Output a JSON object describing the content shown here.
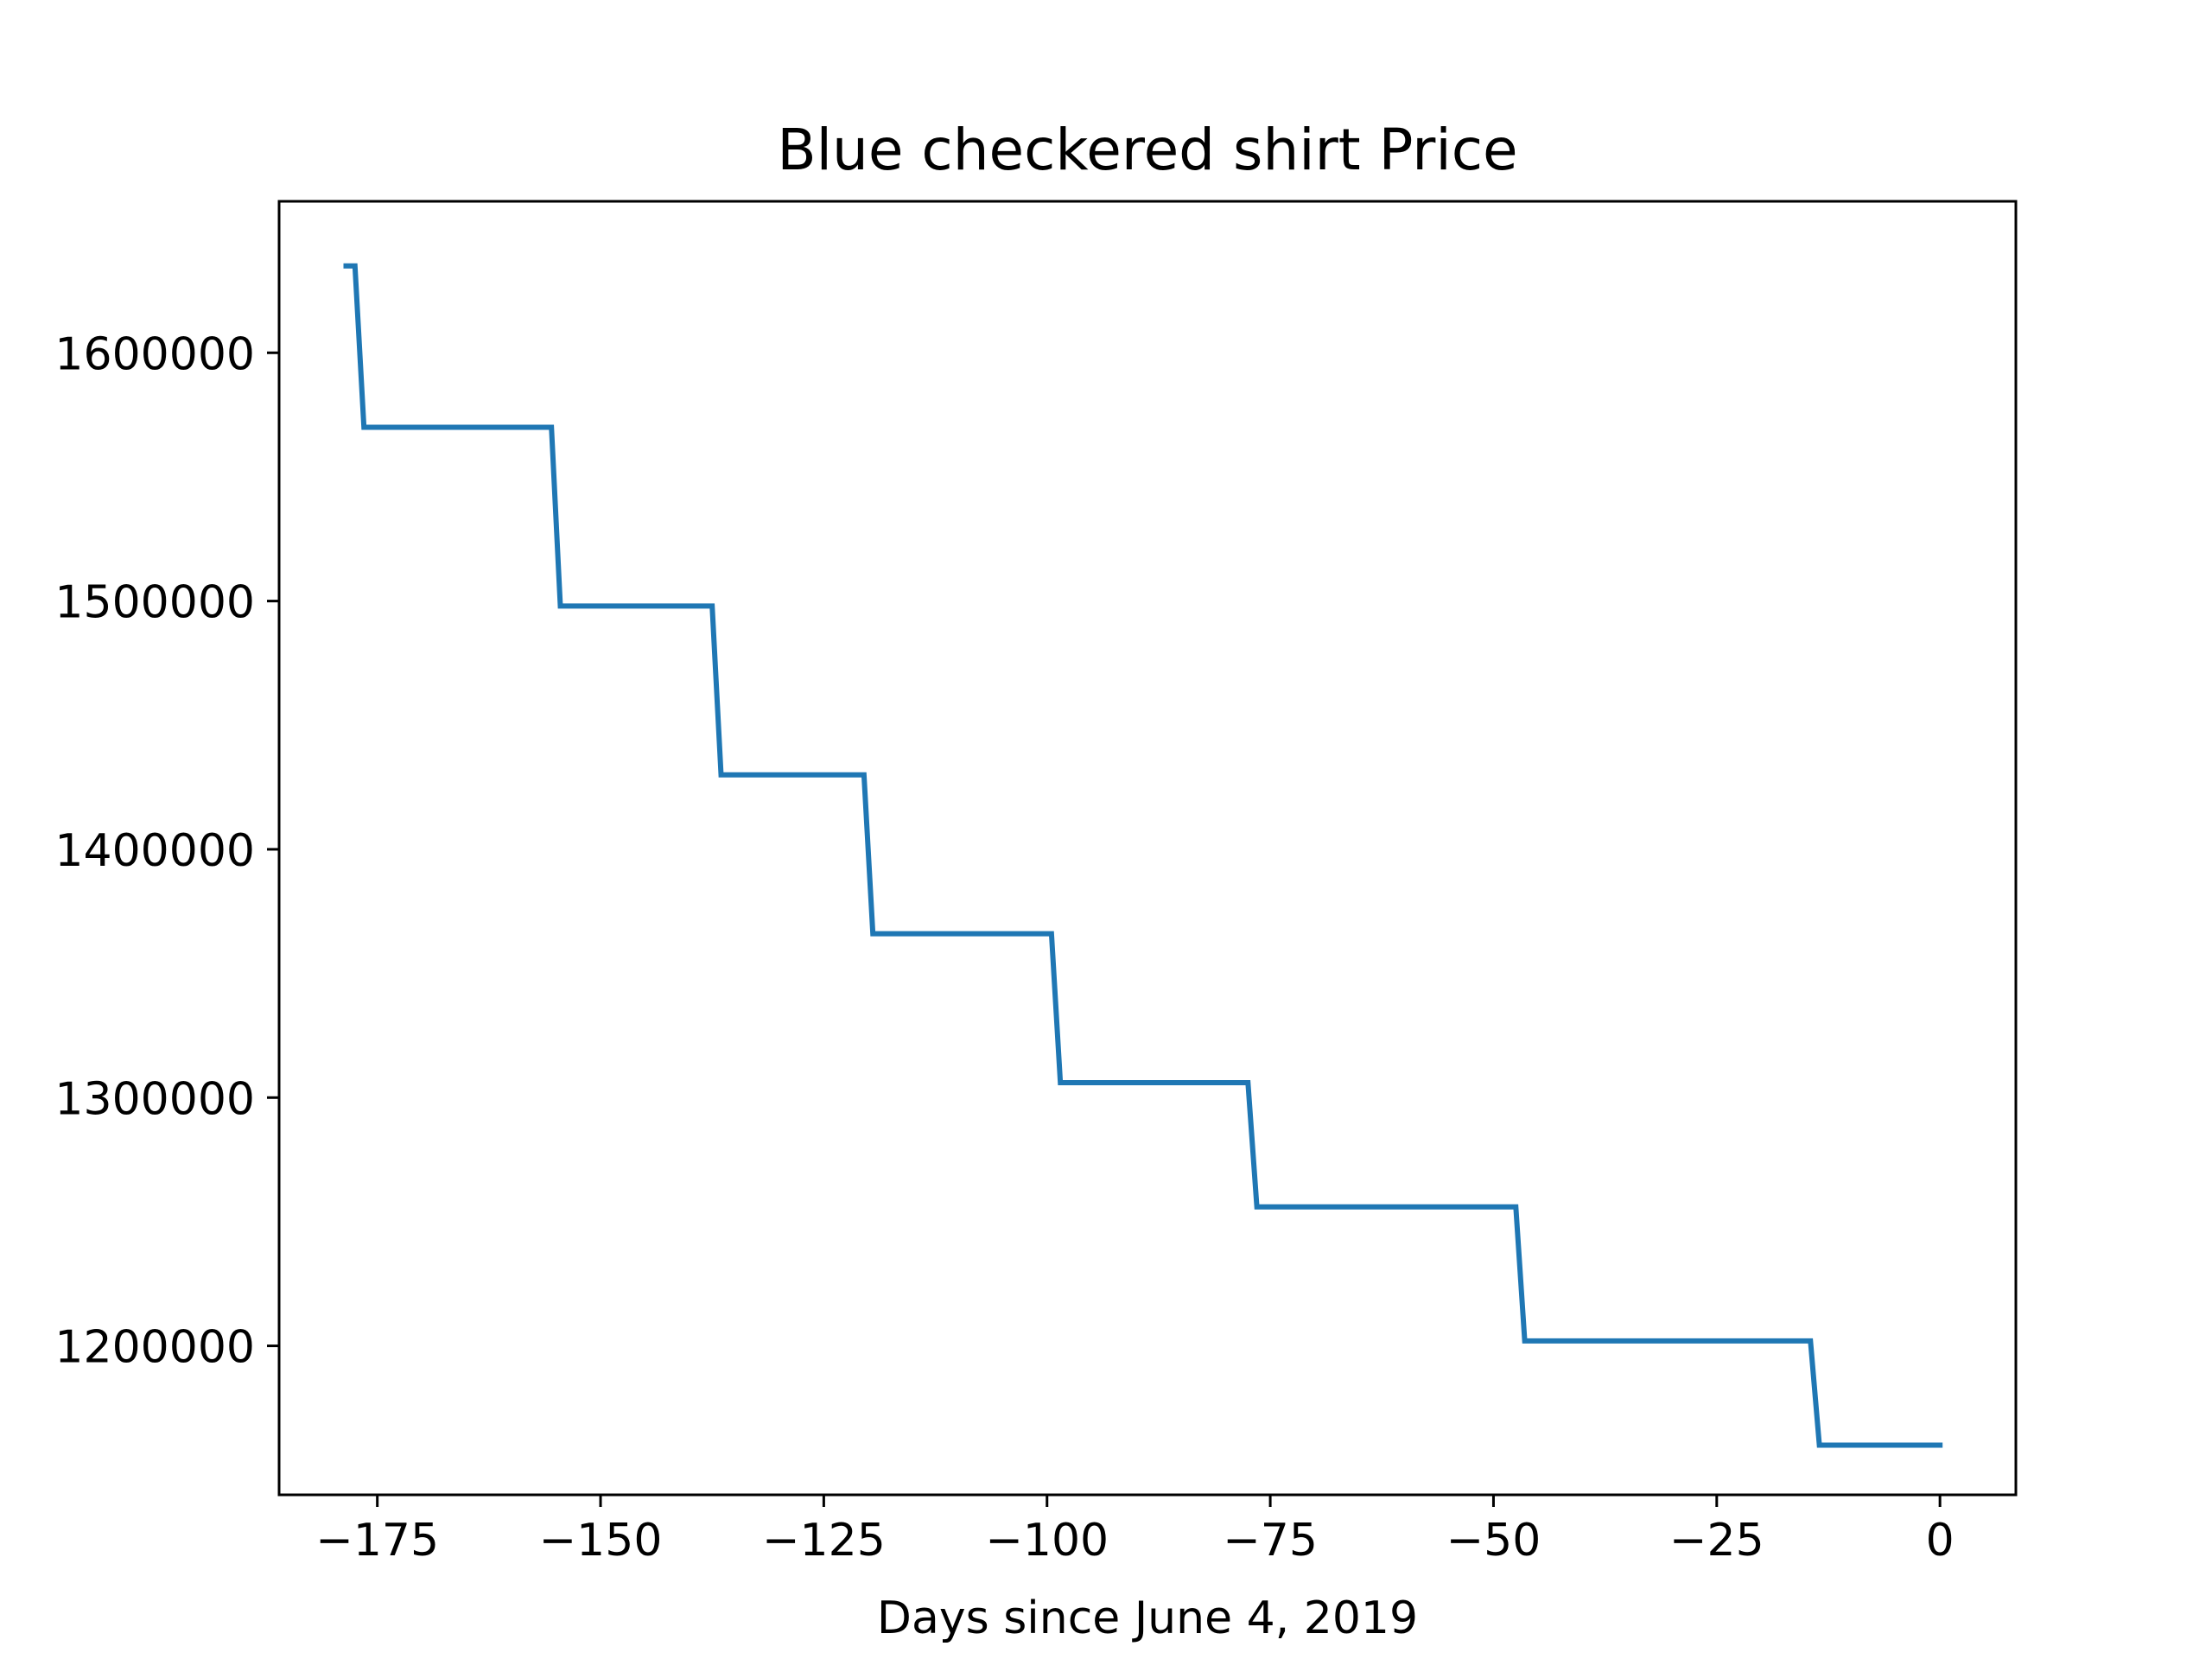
{
  "chart_data": {
    "type": "line",
    "title": "Blue checkered shirt Price",
    "xlabel": "Days since June 4, 2019",
    "ylabel": "",
    "xlim": [
      -186,
      8.5
    ],
    "ylim": [
      1140000,
      1661000
    ],
    "x_ticks": [
      -175,
      -150,
      -125,
      -100,
      -75,
      -50,
      -25,
      0
    ],
    "x_tick_labels": [
      "−175",
      "−150",
      "−125",
      "−100",
      "−75",
      "−50",
      "−25",
      "0"
    ],
    "y_ticks": [
      1200000,
      1300000,
      1400000,
      1500000,
      1600000
    ],
    "y_tick_labels": [
      "1200000",
      "1300000",
      "1400000",
      "1500000",
      "1600000"
    ],
    "grid": false,
    "line_color": "#1f77b4",
    "series": [
      {
        "x": [
          -178.5,
          -177.5,
          -176.5,
          -155.5,
          -154.5,
          -137.5,
          -136.5,
          -120.5,
          -119.5,
          -99.5,
          -98.5,
          -77.5,
          -76.5,
          -47.5,
          -46.5,
          -14.5,
          -13.5,
          0
        ],
        "y": [
          1635000,
          1635000,
          1570000,
          1570000,
          1498000,
          1498000,
          1430000,
          1430000,
          1366000,
          1366000,
          1306000,
          1306000,
          1256000,
          1256000,
          1202000,
          1202000,
          1160000,
          1160000
        ]
      }
    ]
  }
}
